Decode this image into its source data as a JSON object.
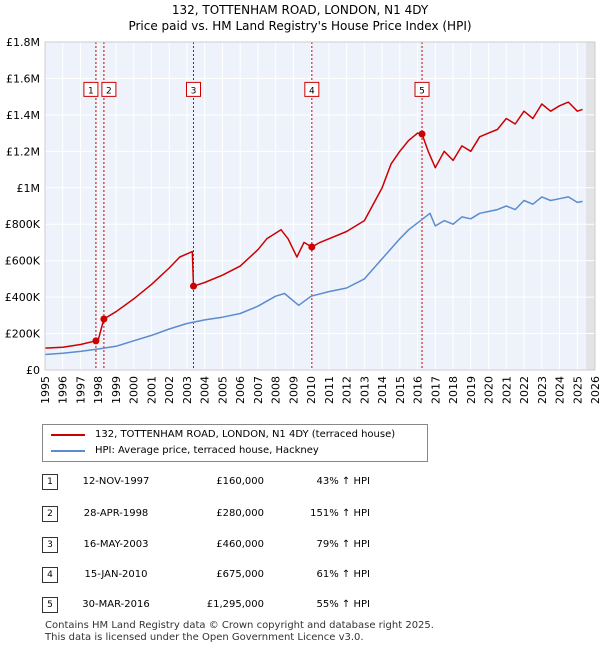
{
  "header": {
    "title": "132, TOTTENHAM ROAD, LONDON, N1 4DY",
    "subtitle": "Price paid vs. HM Land Registry's House Price Index (HPI)"
  },
  "chart_data": {
    "type": "line",
    "title": "132, TOTTENHAM ROAD, LONDON, N1 4DY",
    "subtitle": "Price paid vs. HM Land Registry's House Price Index (HPI)",
    "xlim": [
      1995,
      2026
    ],
    "ylim": [
      0,
      1800000
    ],
    "x_ticks": [
      1995,
      1996,
      1997,
      1998,
      1999,
      2000,
      2001,
      2002,
      2003,
      2004,
      2005,
      2006,
      2007,
      2008,
      2009,
      2010,
      2011,
      2012,
      2013,
      2014,
      2015,
      2016,
      2017,
      2018,
      2019,
      2020,
      2021,
      2022,
      2023,
      2024,
      2025,
      2026
    ],
    "y_ticks": [
      {
        "value": 0,
        "label": "£0"
      },
      {
        "value": 200000,
        "label": "£200K"
      },
      {
        "value": 400000,
        "label": "£400K"
      },
      {
        "value": 600000,
        "label": "£600K"
      },
      {
        "value": 800000,
        "label": "£800K"
      },
      {
        "value": 1000000,
        "label": "£1M"
      },
      {
        "value": 1200000,
        "label": "£1.2M"
      },
      {
        "value": 1400000,
        "label": "£1.4M"
      },
      {
        "value": 1600000,
        "label": "£1.6M"
      },
      {
        "value": 1800000,
        "label": "£1.8M"
      }
    ],
    "grid": true,
    "forecast_from": 2025.5,
    "series": [
      {
        "name": "132, TOTTENHAM ROAD, LONDON, N1 4DY (terraced house)",
        "color": "#cc0000",
        "points": [
          [
            1995.0,
            120000
          ],
          [
            1996.0,
            125000
          ],
          [
            1997.0,
            140000
          ],
          [
            1997.87,
            160000
          ],
          [
            1998.0,
            165000
          ],
          [
            1998.32,
            280000
          ],
          [
            1999.0,
            320000
          ],
          [
            2000.0,
            390000
          ],
          [
            2001.0,
            470000
          ],
          [
            2002.0,
            560000
          ],
          [
            2002.6,
            620000
          ],
          [
            2003.3,
            650000
          ],
          [
            2003.37,
            460000
          ],
          [
            2004.0,
            480000
          ],
          [
            2005.0,
            520000
          ],
          [
            2006.0,
            570000
          ],
          [
            2007.0,
            660000
          ],
          [
            2007.5,
            720000
          ],
          [
            2008.3,
            770000
          ],
          [
            2008.7,
            720000
          ],
          [
            2009.2,
            620000
          ],
          [
            2009.6,
            700000
          ],
          [
            2010.04,
            675000
          ],
          [
            2010.5,
            700000
          ],
          [
            2011.0,
            720000
          ],
          [
            2012.0,
            760000
          ],
          [
            2013.0,
            820000
          ],
          [
            2014.0,
            1000000
          ],
          [
            2014.5,
            1130000
          ],
          [
            2015.0,
            1200000
          ],
          [
            2015.5,
            1260000
          ],
          [
            2016.0,
            1300000
          ],
          [
            2016.25,
            1295000
          ],
          [
            2016.6,
            1200000
          ],
          [
            2017.0,
            1110000
          ],
          [
            2017.5,
            1200000
          ],
          [
            2018.0,
            1150000
          ],
          [
            2018.5,
            1230000
          ],
          [
            2019.0,
            1200000
          ],
          [
            2019.5,
            1280000
          ],
          [
            2020.0,
            1300000
          ],
          [
            2020.5,
            1320000
          ],
          [
            2021.0,
            1380000
          ],
          [
            2021.5,
            1350000
          ],
          [
            2022.0,
            1420000
          ],
          [
            2022.5,
            1380000
          ],
          [
            2023.0,
            1460000
          ],
          [
            2023.5,
            1420000
          ],
          [
            2024.0,
            1450000
          ],
          [
            2024.5,
            1470000
          ],
          [
            2025.0,
            1420000
          ],
          [
            2025.3,
            1430000
          ]
        ]
      },
      {
        "name": "HPI: Average price, terraced house, Hackney",
        "color": "#5b8cce",
        "points": [
          [
            1995.0,
            85000
          ],
          [
            1996.0,
            92000
          ],
          [
            1997.0,
            102000
          ],
          [
            1998.0,
            115000
          ],
          [
            1999.0,
            130000
          ],
          [
            2000.0,
            160000
          ],
          [
            2001.0,
            190000
          ],
          [
            2002.0,
            225000
          ],
          [
            2003.0,
            255000
          ],
          [
            2004.0,
            275000
          ],
          [
            2005.0,
            290000
          ],
          [
            2006.0,
            310000
          ],
          [
            2007.0,
            350000
          ],
          [
            2008.0,
            405000
          ],
          [
            2008.5,
            420000
          ],
          [
            2009.3,
            355000
          ],
          [
            2010.0,
            405000
          ],
          [
            2011.0,
            430000
          ],
          [
            2012.0,
            450000
          ],
          [
            2013.0,
            500000
          ],
          [
            2014.0,
            610000
          ],
          [
            2015.0,
            720000
          ],
          [
            2015.5,
            770000
          ],
          [
            2016.3,
            830000
          ],
          [
            2016.7,
            860000
          ],
          [
            2017.0,
            790000
          ],
          [
            2017.5,
            820000
          ],
          [
            2018.0,
            800000
          ],
          [
            2018.5,
            840000
          ],
          [
            2019.0,
            830000
          ],
          [
            2019.5,
            860000
          ],
          [
            2020.0,
            870000
          ],
          [
            2020.5,
            880000
          ],
          [
            2021.0,
            900000
          ],
          [
            2021.5,
            880000
          ],
          [
            2022.0,
            930000
          ],
          [
            2022.5,
            910000
          ],
          [
            2023.0,
            950000
          ],
          [
            2023.5,
            930000
          ],
          [
            2024.0,
            940000
          ],
          [
            2024.5,
            950000
          ],
          [
            2025.0,
            920000
          ],
          [
            2025.3,
            925000
          ]
        ]
      }
    ],
    "sales": [
      {
        "id": "1",
        "x": 1997.87,
        "price": 160000
      },
      {
        "id": "2",
        "x": 1998.32,
        "price": 280000
      },
      {
        "id": "3",
        "x": 2003.37,
        "price": 460000
      },
      {
        "id": "4",
        "x": 2010.04,
        "price": 675000
      },
      {
        "id": "5",
        "x": 2016.25,
        "price": 1295000
      }
    ],
    "marker_label_y": 1540000
  },
  "legend": {
    "items": [
      {
        "label": "132, TOTTENHAM ROAD, LONDON, N1 4DY (terraced house)",
        "color": "#cc0000"
      },
      {
        "label": "HPI: Average price, terraced house, Hackney",
        "color": "#5b8cce"
      }
    ]
  },
  "sales_table": [
    {
      "id": "1",
      "date": "12-NOV-1997",
      "price": "£160,000",
      "hpi": "43% ↑ HPI"
    },
    {
      "id": "2",
      "date": "28-APR-1998",
      "price": "£280,000",
      "hpi": "151% ↑ HPI"
    },
    {
      "id": "3",
      "date": "16-MAY-2003",
      "price": "£460,000",
      "hpi": "79% ↑ HPI"
    },
    {
      "id": "4",
      "date": "15-JAN-2010",
      "price": "£675,000",
      "hpi": "61% ↑ HPI"
    },
    {
      "id": "5",
      "date": "30-MAR-2016",
      "price": "£1,295,000",
      "hpi": "55% ↑ HPI"
    }
  ],
  "footer": {
    "line1": "Contains HM Land Registry data © Crown copyright and database right 2025.",
    "line2": "This data is licensed under the Open Government Licence v3.0."
  }
}
